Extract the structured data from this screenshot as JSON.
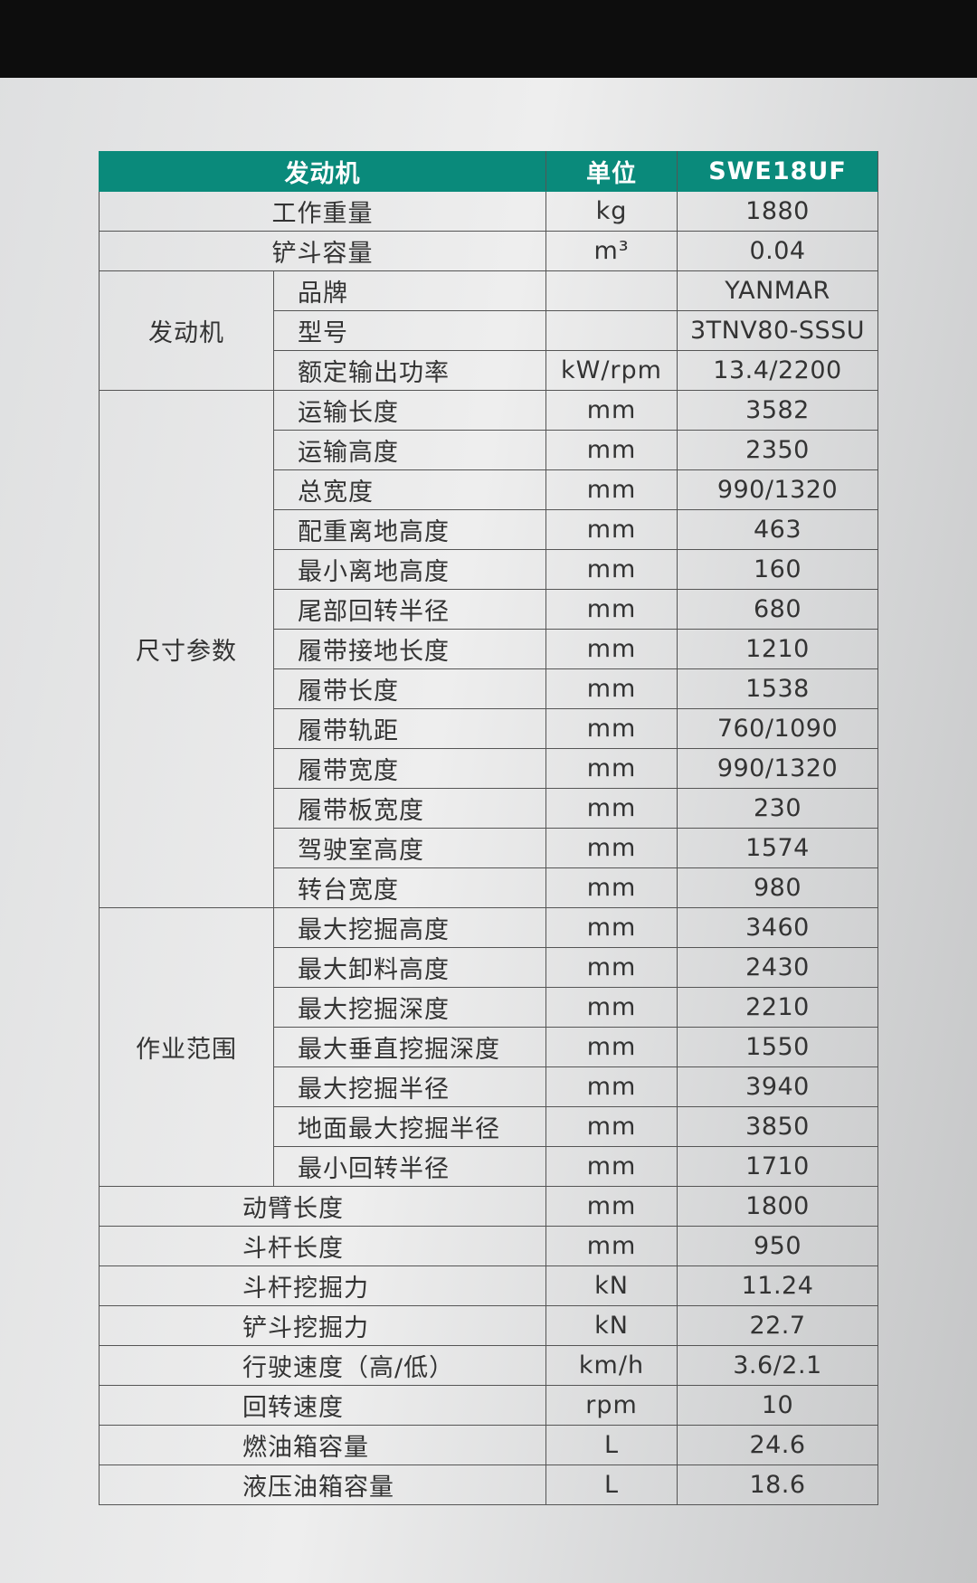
{
  "header": {
    "param": "发动机",
    "unit": "单位",
    "model": "SWE18UF"
  },
  "colors": {
    "header_bg": "#0a8a7b",
    "header_text": "#ffffff"
  },
  "rows": [
    {
      "name": "工作重量",
      "unit": "kg",
      "value": "1880",
      "align": "center"
    },
    {
      "name": "铲斗容量",
      "unit": "m³",
      "value": "0.04",
      "align": "center"
    },
    {
      "group": "发动机",
      "items": [
        {
          "name": "品牌",
          "unit": "",
          "value": "YANMAR"
        },
        {
          "name": "型号",
          "unit": "",
          "value": "3TNV80-SSSU"
        },
        {
          "name": "额定输出功率",
          "unit": "kW/rpm",
          "value": "13.4/2200"
        }
      ]
    },
    {
      "group": "尺寸参数",
      "items": [
        {
          "name": "运输长度",
          "unit": "mm",
          "value": "3582"
        },
        {
          "name": "运输高度",
          "unit": "mm",
          "value": "2350"
        },
        {
          "name": "总宽度",
          "unit": "mm",
          "value": "990/1320"
        },
        {
          "name": "配重离地高度",
          "unit": "mm",
          "value": "463"
        },
        {
          "name": "最小离地高度",
          "unit": "mm",
          "value": "160"
        },
        {
          "name": "尾部回转半径",
          "unit": "mm",
          "value": "680"
        },
        {
          "name": "履带接地长度",
          "unit": "mm",
          "value": "1210"
        },
        {
          "name": "履带长度",
          "unit": "mm",
          "value": "1538"
        },
        {
          "name": "履带轨距",
          "unit": "mm",
          "value": "760/1090"
        },
        {
          "name": "履带宽度",
          "unit": "mm",
          "value": "990/1320"
        },
        {
          "name": "履带板宽度",
          "unit": "mm",
          "value": "230"
        },
        {
          "name": "驾驶室高度",
          "unit": "mm",
          "value": "1574"
        },
        {
          "name": "转台宽度",
          "unit": "mm",
          "value": "980"
        }
      ]
    },
    {
      "group": "作业范围",
      "items": [
        {
          "name": "最大挖掘高度",
          "unit": "mm",
          "value": "3460"
        },
        {
          "name": "最大卸料高度",
          "unit": "mm",
          "value": "2430"
        },
        {
          "name": "最大挖掘深度",
          "unit": "mm",
          "value": "2210"
        },
        {
          "name": "最大垂直挖掘深度",
          "unit": "mm",
          "value": "1550"
        },
        {
          "name": "最大挖掘半径",
          "unit": "mm",
          "value": "3940"
        },
        {
          "name": "地面最大挖掘半径",
          "unit": "mm",
          "value": "3850"
        },
        {
          "name": "最小回转半径",
          "unit": "mm",
          "value": "1710"
        }
      ]
    },
    {
      "name": "动臂长度",
      "unit": "mm",
      "value": "1800",
      "align": "left"
    },
    {
      "name": "斗杆长度",
      "unit": "mm",
      "value": "950",
      "align": "left"
    },
    {
      "name": "斗杆挖掘力",
      "unit": "kN",
      "value": "11.24",
      "align": "left"
    },
    {
      "name": "铲斗挖掘力",
      "unit": "kN",
      "value": "22.7",
      "align": "left"
    },
    {
      "name": "行驶速度（高/低）",
      "unit": "km/h",
      "value": "3.6/2.1",
      "align": "left"
    },
    {
      "name": "回转速度",
      "unit": "rpm",
      "value": "10",
      "align": "left"
    },
    {
      "name": "燃油箱容量",
      "unit": "L",
      "value": "24.6",
      "align": "left"
    },
    {
      "name": "液压油箱容量",
      "unit": "L",
      "value": "18.6",
      "align": "left"
    }
  ]
}
